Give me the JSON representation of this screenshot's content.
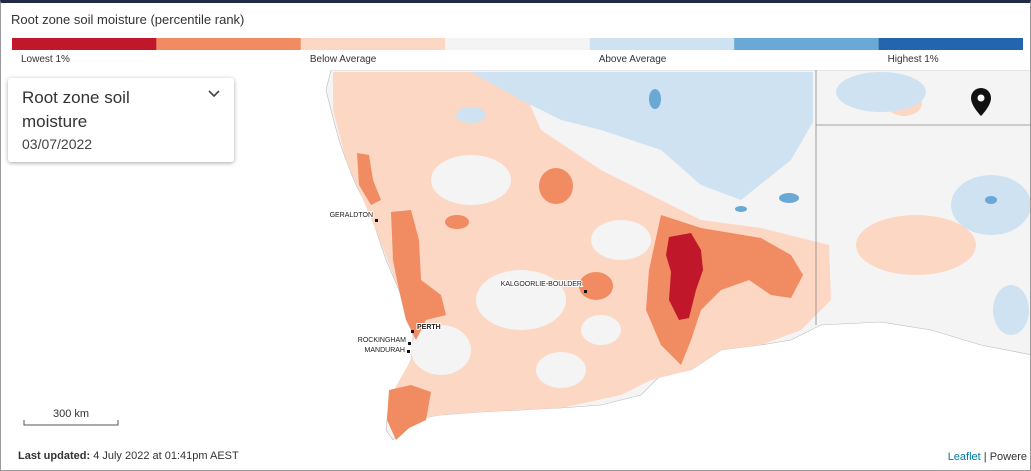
{
  "header": {
    "title": "Root zone soil moisture (percentile rank)"
  },
  "legend": {
    "colors": [
      "#c0182a",
      "#f08b62",
      "#fcd7c4",
      "#f4f4f4",
      "#cfe2f1",
      "#6aa8d6",
      "#2366ad"
    ],
    "labels": [
      "Lowest 1%",
      "Below Average",
      "Above Average",
      "Highest 1%"
    ]
  },
  "panel": {
    "title": "Root zone soil moisture",
    "date": "03/07/2022"
  },
  "map": {
    "places": [
      "GERALDTON",
      "KALGOORLIE-BOULDER",
      "PERTH",
      "ROCKINGHAM",
      "MANDURAH"
    ],
    "scale": "300 km"
  },
  "footer": {
    "updated_label": "Last updated:",
    "updated_value": "4 July 2022 at 01:41pm AEST",
    "attribution_link": "Leaflet",
    "attribution_rest": "| Powere"
  }
}
